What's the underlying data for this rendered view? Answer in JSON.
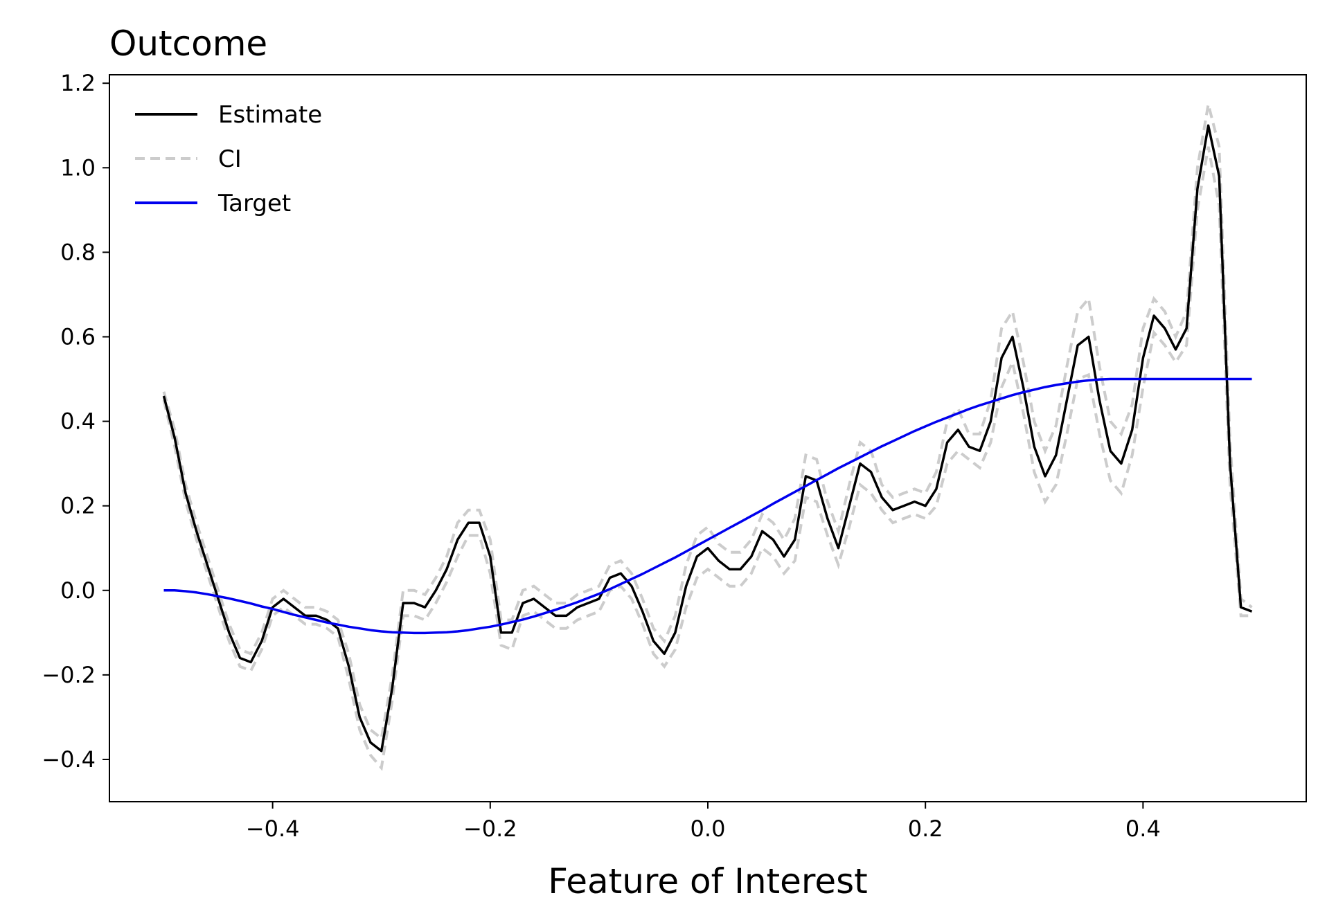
{
  "chart_data": {
    "type": "line",
    "title": "Outcome",
    "xlabel": "Feature of Interest",
    "ylabel": "",
    "xlim": [
      -0.55,
      0.55
    ],
    "ylim": [
      -0.5,
      1.22
    ],
    "x_ticks": [
      -0.4,
      -0.2,
      0.0,
      0.2,
      0.4
    ],
    "x_tick_labels": [
      "−0.4",
      "−0.2",
      "0.0",
      "0.2",
      "0.4"
    ],
    "y_ticks": [
      -0.4,
      -0.2,
      0.0,
      0.2,
      0.4,
      0.6,
      0.8,
      1.0,
      1.2
    ],
    "y_tick_labels": [
      "−0.4",
      "−0.2",
      "0.0",
      "0.2",
      "0.4",
      "0.6",
      "0.8",
      "1.0",
      "1.2"
    ],
    "grid": false,
    "legend_position": "top-left",
    "x": [
      -0.5,
      -0.49,
      -0.48,
      -0.47,
      -0.46,
      -0.45,
      -0.44,
      -0.43,
      -0.42,
      -0.41,
      -0.4,
      -0.39,
      -0.38,
      -0.37,
      -0.36,
      -0.35,
      -0.34,
      -0.33,
      -0.32,
      -0.31,
      -0.3,
      -0.29,
      -0.28,
      -0.27,
      -0.26,
      -0.25,
      -0.24,
      -0.23,
      -0.22,
      -0.21,
      -0.2,
      -0.19,
      -0.18,
      -0.17,
      -0.16,
      -0.15,
      -0.14,
      -0.13,
      -0.12,
      -0.11,
      -0.1,
      -0.09,
      -0.08,
      -0.07,
      -0.06,
      -0.05,
      -0.04,
      -0.03,
      -0.02,
      -0.01,
      0.0,
      0.01,
      0.02,
      0.03,
      0.04,
      0.05,
      0.06,
      0.07,
      0.08,
      0.09,
      0.1,
      0.11,
      0.12,
      0.13,
      0.14,
      0.15,
      0.16,
      0.17,
      0.18,
      0.19,
      0.2,
      0.21,
      0.22,
      0.23,
      0.24,
      0.25,
      0.26,
      0.27,
      0.28,
      0.29,
      0.3,
      0.31,
      0.32,
      0.33,
      0.34,
      0.35,
      0.36,
      0.37,
      0.38,
      0.39,
      0.4,
      0.41,
      0.42,
      0.43,
      0.44,
      0.45,
      0.46,
      0.47,
      0.48,
      0.49,
      0.5
    ],
    "series": [
      {
        "name": "Estimate",
        "color": "#000000",
        "style": "solid",
        "values": [
          0.46,
          0.36,
          0.23,
          0.14,
          0.06,
          -0.02,
          -0.1,
          -0.16,
          -0.17,
          -0.12,
          -0.04,
          -0.02,
          -0.04,
          -0.06,
          -0.06,
          -0.07,
          -0.09,
          -0.18,
          -0.3,
          -0.36,
          -0.38,
          -0.23,
          -0.03,
          -0.03,
          -0.04,
          0.0,
          0.05,
          0.12,
          0.16,
          0.16,
          0.08,
          -0.1,
          -0.1,
          -0.03,
          -0.02,
          -0.04,
          -0.06,
          -0.06,
          -0.04,
          -0.03,
          -0.02,
          0.03,
          0.04,
          0.01,
          -0.05,
          -0.12,
          -0.15,
          -0.1,
          0.01,
          0.08,
          0.1,
          0.07,
          0.05,
          0.05,
          0.08,
          0.14,
          0.12,
          0.08,
          0.12,
          0.27,
          0.26,
          0.17,
          0.1,
          0.2,
          0.3,
          0.28,
          0.22,
          0.19,
          0.2,
          0.21,
          0.2,
          0.24,
          0.35,
          0.38,
          0.34,
          0.33,
          0.4,
          0.55,
          0.6,
          0.48,
          0.34,
          0.27,
          0.32,
          0.45,
          0.58,
          0.6,
          0.45,
          0.33,
          0.3,
          0.38,
          0.55,
          0.65,
          0.62,
          0.57,
          0.62,
          0.95,
          1.1,
          0.98,
          0.3,
          -0.04,
          -0.05
        ]
      },
      {
        "name": "CI",
        "color": "#cccccc",
        "style": "dashed",
        "values_upper": [
          0.47,
          0.38,
          0.25,
          0.16,
          0.08,
          0.0,
          -0.08,
          -0.14,
          -0.15,
          -0.1,
          -0.02,
          0.0,
          -0.02,
          -0.04,
          -0.04,
          -0.05,
          -0.07,
          -0.15,
          -0.27,
          -0.33,
          -0.35,
          -0.2,
          0.0,
          0.0,
          -0.01,
          0.03,
          0.08,
          0.16,
          0.19,
          0.19,
          0.12,
          -0.07,
          -0.07,
          0.0,
          0.01,
          -0.01,
          -0.03,
          -0.03,
          -0.01,
          0.0,
          0.01,
          0.06,
          0.07,
          0.04,
          -0.02,
          -0.09,
          -0.12,
          -0.06,
          0.06,
          0.13,
          0.15,
          0.11,
          0.09,
          0.09,
          0.12,
          0.18,
          0.16,
          0.12,
          0.17,
          0.32,
          0.31,
          0.21,
          0.14,
          0.25,
          0.35,
          0.33,
          0.25,
          0.22,
          0.23,
          0.24,
          0.23,
          0.28,
          0.4,
          0.43,
          0.37,
          0.37,
          0.45,
          0.62,
          0.66,
          0.54,
          0.4,
          0.33,
          0.39,
          0.53,
          0.66,
          0.69,
          0.53,
          0.4,
          0.37,
          0.44,
          0.62,
          0.69,
          0.66,
          0.6,
          0.66,
          1.0,
          1.15,
          1.05,
          0.35,
          -0.02,
          -0.04
        ],
        "values_lower": [
          0.45,
          0.34,
          0.21,
          0.12,
          0.04,
          -0.04,
          -0.12,
          -0.18,
          -0.19,
          -0.14,
          -0.06,
          -0.04,
          -0.06,
          -0.08,
          -0.08,
          -0.09,
          -0.11,
          -0.21,
          -0.33,
          -0.39,
          -0.42,
          -0.26,
          -0.06,
          -0.06,
          -0.07,
          -0.03,
          0.02,
          0.08,
          0.13,
          0.13,
          0.04,
          -0.13,
          -0.14,
          -0.06,
          -0.05,
          -0.07,
          -0.09,
          -0.09,
          -0.07,
          -0.06,
          -0.05,
          0.0,
          0.01,
          -0.02,
          -0.08,
          -0.15,
          -0.18,
          -0.14,
          -0.04,
          0.03,
          0.05,
          0.03,
          0.01,
          0.01,
          0.04,
          0.1,
          0.08,
          0.04,
          0.07,
          0.22,
          0.21,
          0.13,
          0.06,
          0.15,
          0.25,
          0.23,
          0.19,
          0.16,
          0.17,
          0.18,
          0.17,
          0.2,
          0.3,
          0.33,
          0.31,
          0.29,
          0.35,
          0.48,
          0.54,
          0.42,
          0.28,
          0.21,
          0.25,
          0.37,
          0.5,
          0.51,
          0.37,
          0.26,
          0.23,
          0.32,
          0.48,
          0.61,
          0.58,
          0.54,
          0.58,
          0.9,
          1.05,
          0.91,
          0.25,
          -0.06,
          -0.06
        ]
      },
      {
        "name": "Target",
        "color": "#0000ee",
        "style": "solid",
        "values": [
          0.0,
          0.0,
          -0.002,
          -0.005,
          -0.009,
          -0.014,
          -0.019,
          -0.025,
          -0.031,
          -0.038,
          -0.044,
          -0.051,
          -0.058,
          -0.064,
          -0.07,
          -0.076,
          -0.081,
          -0.086,
          -0.09,
          -0.094,
          -0.097,
          -0.099,
          -0.1,
          -0.101,
          -0.101,
          -0.1,
          -0.099,
          -0.097,
          -0.094,
          -0.09,
          -0.086,
          -0.081,
          -0.075,
          -0.069,
          -0.062,
          -0.054,
          -0.046,
          -0.037,
          -0.028,
          -0.018,
          -0.008,
          0.003,
          0.015,
          0.027,
          0.039,
          0.052,
          0.065,
          0.078,
          0.092,
          0.106,
          0.12,
          0.134,
          0.148,
          0.162,
          0.176,
          0.19,
          0.205,
          0.219,
          0.233,
          0.247,
          0.261,
          0.275,
          0.289,
          0.302,
          0.315,
          0.328,
          0.341,
          0.353,
          0.365,
          0.377,
          0.388,
          0.399,
          0.409,
          0.419,
          0.429,
          0.438,
          0.446,
          0.454,
          0.462,
          0.469,
          0.475,
          0.481,
          0.486,
          0.49,
          0.494,
          0.497,
          0.499,
          0.5,
          0.5,
          0.5,
          0.5,
          0.5,
          0.5,
          0.5,
          0.5,
          0.5,
          0.5,
          0.5,
          0.5,
          0.5,
          0.5
        ]
      }
    ]
  }
}
